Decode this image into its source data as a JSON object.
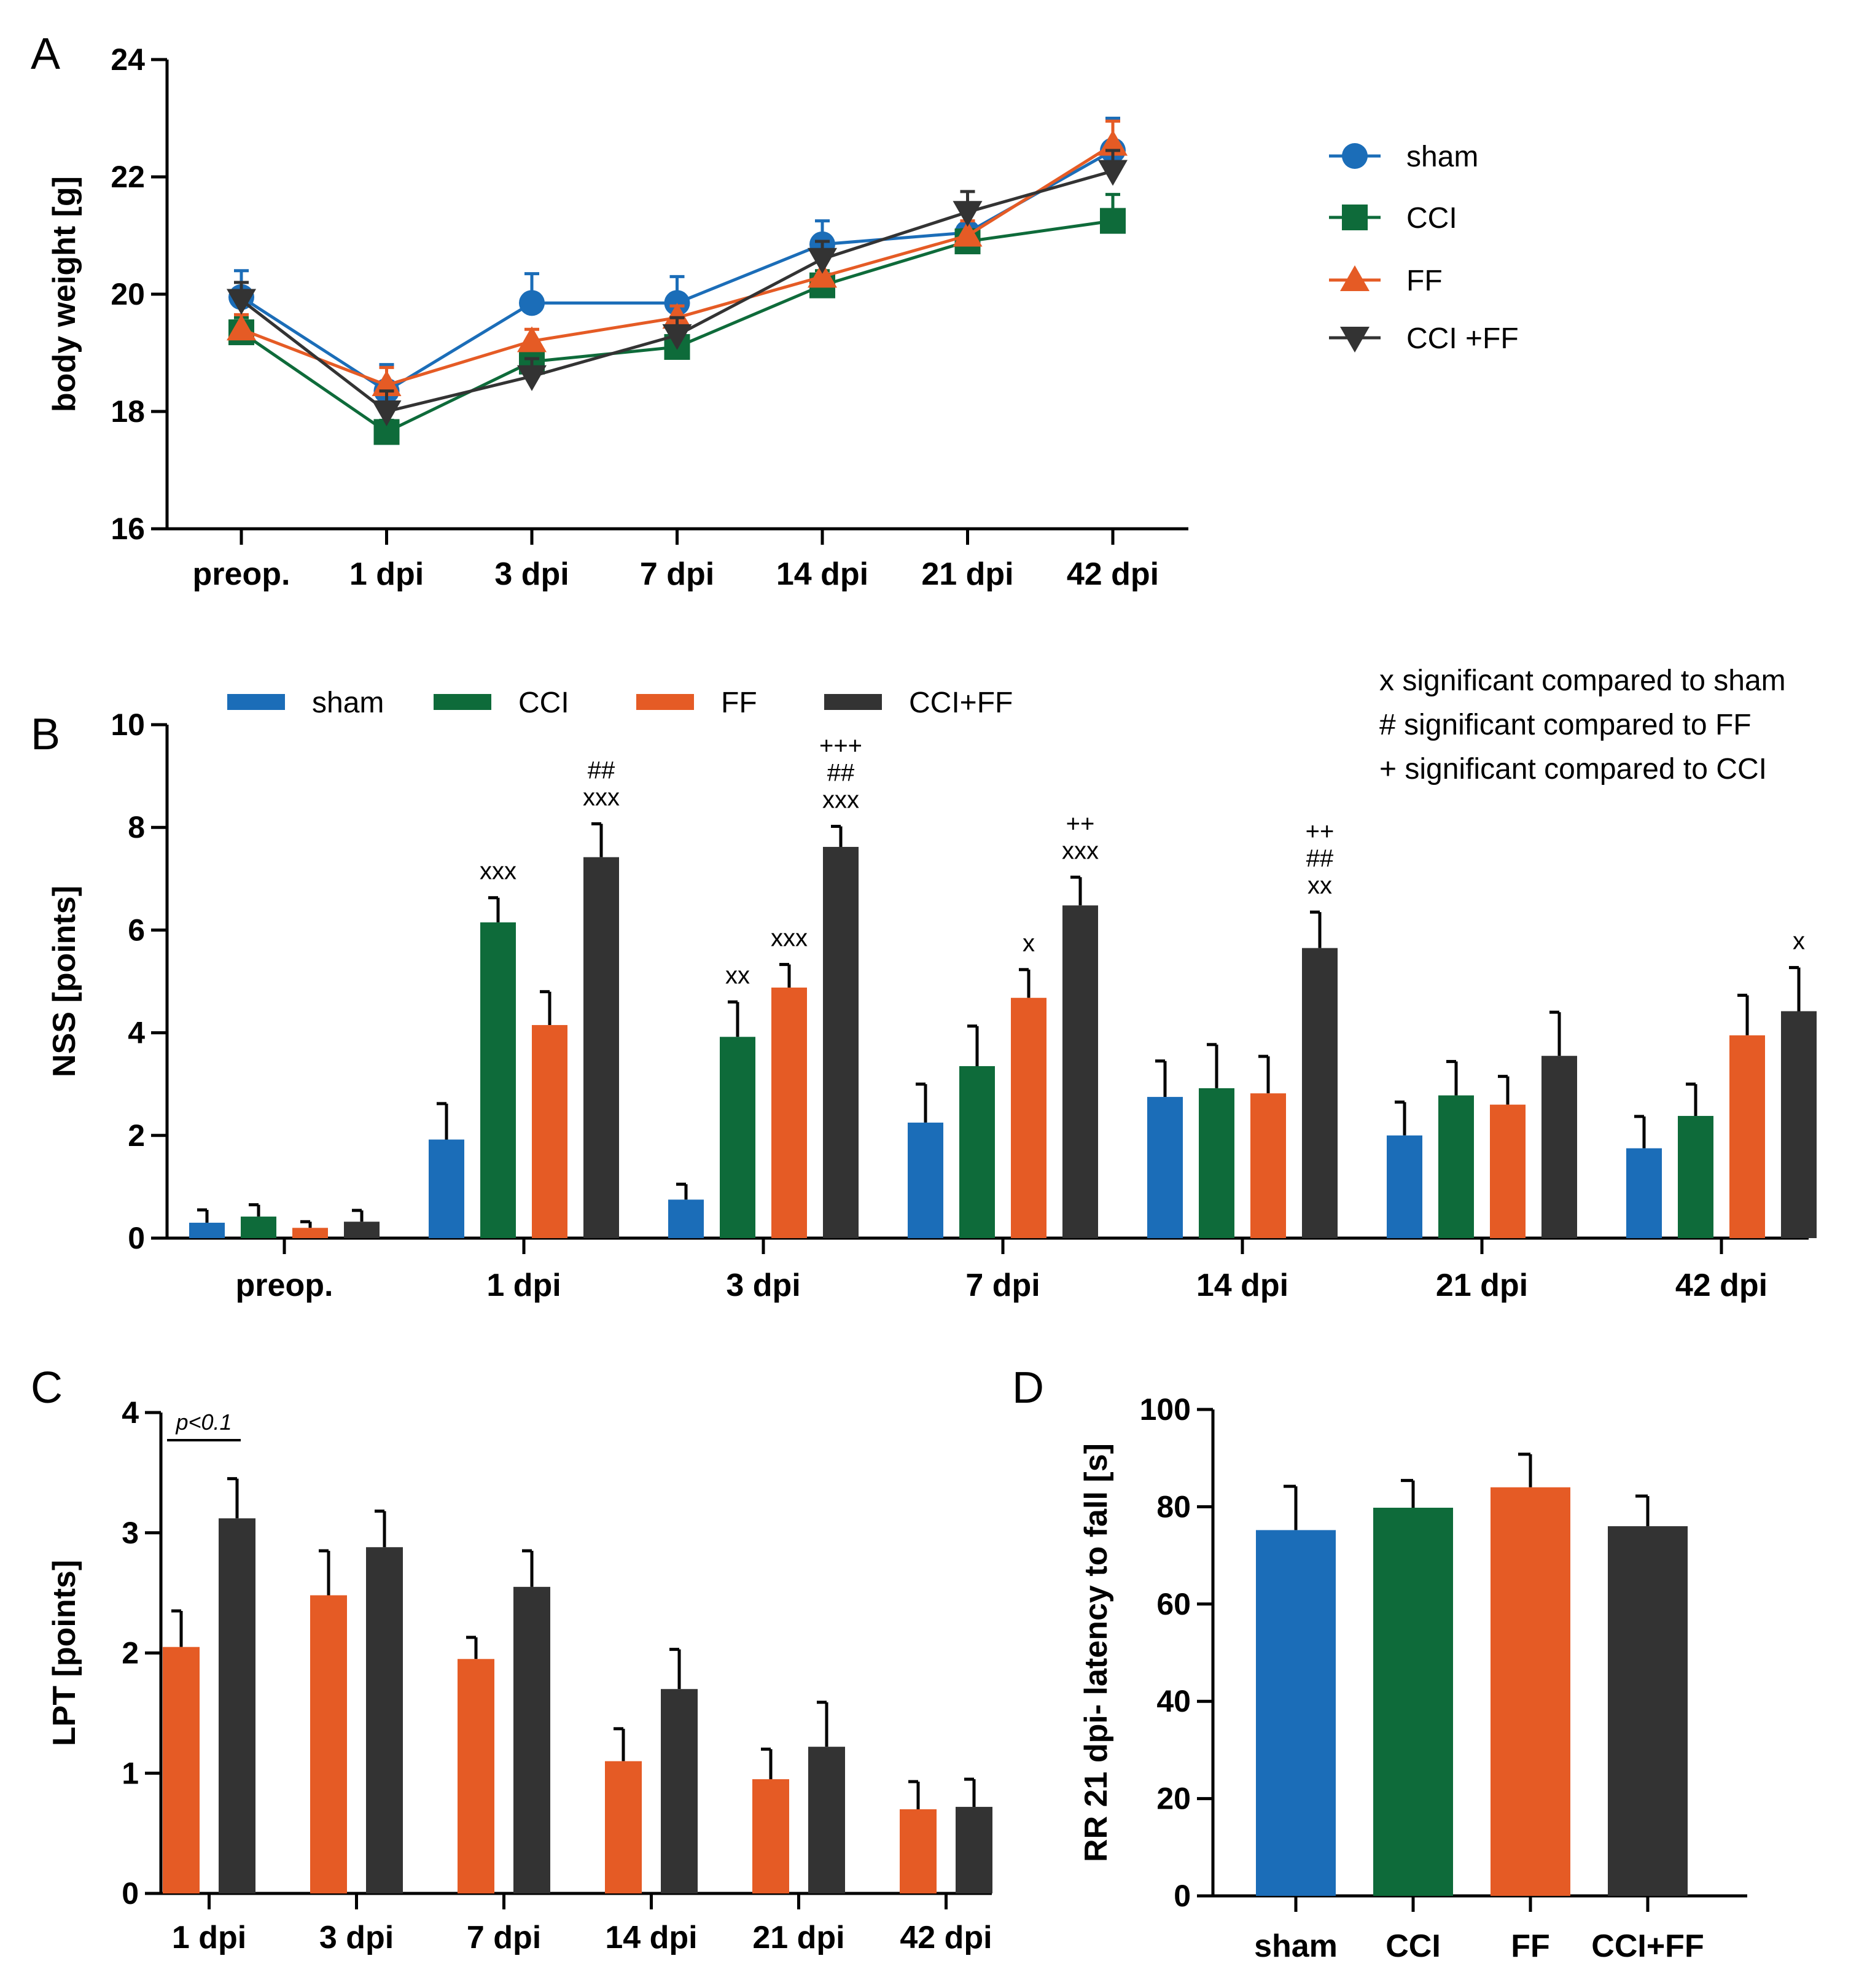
{
  "colors": {
    "sham": "#1b6db8",
    "CCI": "#0e6b3a",
    "FF": "#e55b25",
    "CCI+FF": "#333333"
  },
  "chart_data": [
    {
      "panel": "A",
      "type": "line",
      "ylabel": "body weight [g]",
      "ylim": [
        16,
        24
      ],
      "yticks": [
        16,
        18,
        20,
        22,
        24
      ],
      "categories": [
        "preop.",
        "1 dpi",
        "3 dpi",
        "7 dpi",
        "14 dpi",
        "21 dpi",
        "42 dpi"
      ],
      "legend": [
        "sham",
        "CCI",
        "FF",
        "CCI +FF"
      ],
      "series": [
        {
          "name": "sham",
          "marker": "circle",
          "values": [
            19.95,
            18.35,
            19.85,
            19.85,
            20.85,
            21.05,
            22.45
          ],
          "errors": [
            0.45,
            0.45,
            0.5,
            0.45,
            0.4,
            0.45,
            0.55
          ]
        },
        {
          "name": "CCI",
          "marker": "square",
          "values": [
            19.35,
            17.65,
            18.85,
            19.1,
            20.15,
            20.9,
            21.25
          ],
          "errors": [
            0.25,
            0.2,
            0.3,
            0.25,
            0.25,
            0.2,
            0.45
          ]
        },
        {
          "name": "FF",
          "marker": "triangle-up",
          "values": [
            19.4,
            18.45,
            19.2,
            19.6,
            20.3,
            21.0,
            22.55
          ],
          "errors": [
            0.25,
            0.3,
            0.2,
            0.2,
            0.3,
            0.25,
            0.4
          ]
        },
        {
          "name": "CCI +FF",
          "marker": "triangle-down",
          "values": [
            19.9,
            18.0,
            18.6,
            19.3,
            20.6,
            21.4,
            22.1
          ],
          "errors": [
            0.3,
            0.35,
            0.3,
            0.3,
            0.3,
            0.35,
            0.35
          ]
        }
      ]
    },
    {
      "panel": "B",
      "type": "bar",
      "ylabel": "NSS [points]",
      "ylim": [
        0,
        10
      ],
      "yticks": [
        0,
        2,
        4,
        6,
        8,
        10
      ],
      "categories": [
        "preop.",
        "1 dpi",
        "3 dpi",
        "7 dpi",
        "14 dpi",
        "21 dpi",
        "42 dpi"
      ],
      "legend": [
        "sham",
        "CCI",
        "FF",
        "CCI+FF"
      ],
      "series": [
        {
          "name": "sham",
          "values": [
            0.3,
            1.92,
            0.75,
            2.25,
            2.75,
            2.0,
            1.75
          ],
          "errors": [
            0.25,
            0.7,
            0.3,
            0.75,
            0.7,
            0.65,
            0.62
          ],
          "annotations": [
            [],
            [],
            [],
            [],
            [],
            [],
            []
          ]
        },
        {
          "name": "CCI",
          "values": [
            0.42,
            6.15,
            3.92,
            3.35,
            2.92,
            2.78,
            2.38
          ],
          "errors": [
            0.23,
            0.48,
            0.68,
            0.78,
            0.85,
            0.66,
            0.62
          ],
          "annotations": [
            [],
            [
              "xxx"
            ],
            [
              "xx"
            ],
            [],
            [],
            [],
            []
          ]
        },
        {
          "name": "FF",
          "values": [
            0.2,
            4.15,
            4.88,
            4.68,
            2.82,
            2.6,
            3.95
          ],
          "errors": [
            0.12,
            0.65,
            0.45,
            0.55,
            0.72,
            0.55,
            0.78
          ],
          "annotations": [
            [],
            [],
            [
              "xxx"
            ],
            [
              "x"
            ],
            [],
            [],
            []
          ]
        },
        {
          "name": "CCI+FF",
          "values": [
            0.32,
            7.42,
            7.62,
            6.48,
            5.65,
            3.55,
            4.42
          ],
          "errors": [
            0.22,
            0.65,
            0.4,
            0.55,
            0.7,
            0.85,
            0.85
          ],
          "annotations": [
            [],
            [
              "xxx",
              "##"
            ],
            [
              "xxx",
              "##",
              "+++"
            ],
            [
              "xxx",
              "++"
            ],
            [
              "xx",
              "##",
              "++"
            ],
            [],
            [
              "x"
            ]
          ]
        }
      ],
      "notes": [
        "x significant compared to sham",
        "# significant compared to FF",
        "+ significant compared to CCI"
      ]
    },
    {
      "panel": "C",
      "type": "bar",
      "ylabel": "LPT [points]",
      "ylim": [
        0,
        4
      ],
      "yticks": [
        0,
        1,
        2,
        3,
        4
      ],
      "categories": [
        "1 dpi",
        "3 dpi",
        "7 dpi",
        "14 dpi",
        "21 dpi",
        "42 dpi"
      ],
      "series": [
        {
          "name": "FF",
          "values": [
            2.05,
            2.48,
            1.95,
            1.1,
            0.95,
            0.7
          ],
          "errors": [
            0.3,
            0.37,
            0.18,
            0.27,
            0.25,
            0.23
          ]
        },
        {
          "name": "CCI+FF",
          "values": [
            3.12,
            2.88,
            2.55,
            1.7,
            1.22,
            0.72
          ],
          "errors": [
            0.33,
            0.3,
            0.3,
            0.33,
            0.37,
            0.23
          ]
        }
      ],
      "annotation": "p<0.1"
    },
    {
      "panel": "D",
      "type": "bar",
      "ylabel": "RR 21 dpi- latency to fall [s]",
      "ylim": [
        0,
        100
      ],
      "yticks": [
        0,
        20,
        40,
        60,
        80,
        100
      ],
      "categories": [
        "sham",
        "CCI",
        "FF",
        "CCI+FF"
      ],
      "values": [
        75.2,
        79.8,
        84.0,
        76.0
      ],
      "errors": [
        9.0,
        5.6,
        6.8,
        6.2
      ]
    }
  ]
}
